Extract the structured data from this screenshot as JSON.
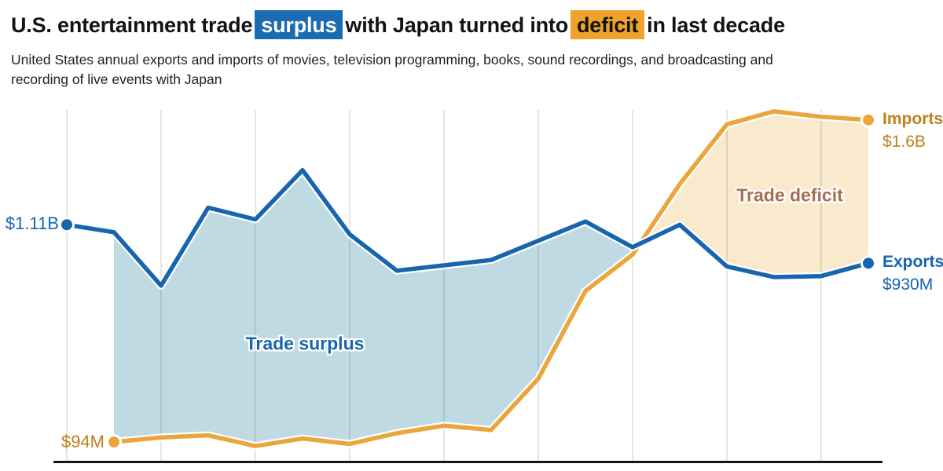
{
  "title": {
    "prefix": "U.S. entertainment trade",
    "highlight_surplus": "surplus",
    "middle": "with Japan turned into",
    "highlight_deficit": "deficit",
    "suffix": "in last decade"
  },
  "subtitle_line1": "United States annual exports and imports of movies, television programming, books, sound recordings, and broadcasting and",
  "subtitle_line2": "recording of live events with Japan",
  "colors": {
    "exports": "#1765AF",
    "imports": "#EAA63C",
    "surplus_fill": "#BFDAE2",
    "deficit_fill": "#FAEACD",
    "surplus_highlight_bg": "#1A6BB2",
    "deficit_highlight_bg": "#F0A32C",
    "imports_label_text": "#BE811B",
    "deficit_label_text": "#A86E54",
    "gridline": "#E3E3E3",
    "axis": "#141414"
  },
  "chart_data": {
    "type": "area",
    "unit": "USD millions",
    "n_points": 18,
    "x_axis": {
      "tick_labels_visible": false,
      "gridlines": "every other data point",
      "baseline_value": 0
    },
    "ylim": [
      0,
      1690
    ],
    "series": [
      {
        "name": "Exports",
        "color": "#1765AF",
        "values": [
          1110,
          1075,
          825,
          1190,
          1135,
          1365,
          1065,
          895,
          920,
          945,
          1035,
          1125,
          1005,
          1110,
          915,
          865,
          870,
          930
        ],
        "start_label": "$1.11B",
        "end_label_title": "Exports",
        "end_label_value": "$930M"
      },
      {
        "name": "Imports",
        "color": "#EAA63C",
        "values": [
          null,
          94,
          115,
          125,
          75,
          110,
          85,
          135,
          170,
          150,
          390,
          800,
          970,
          1300,
          1580,
          1640,
          1615,
          1600
        ],
        "start_label": "$94M",
        "end_label_title": "Imports",
        "end_label_value": "$1.6B"
      }
    ],
    "areas": [
      {
        "label": "Trade surplus",
        "fill": "#BFDAE2",
        "condition": "exports greater than imports"
      },
      {
        "label": "Trade deficit",
        "fill": "#FAEACD",
        "condition": "imports greater than exports"
      }
    ]
  }
}
